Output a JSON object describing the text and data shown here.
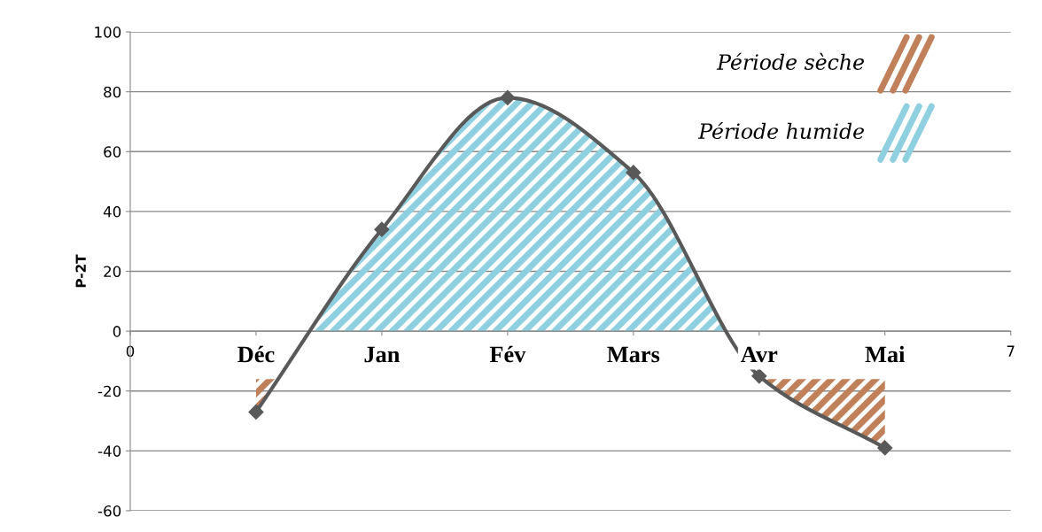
{
  "chart_data": {
    "type": "line",
    "ylabel": "P-2T",
    "x": [
      1,
      2,
      3,
      4,
      5,
      6
    ],
    "series": [
      {
        "color": "#595959",
        "values": [
          -27,
          34,
          78,
          53,
          -15,
          -39
        ]
      }
    ],
    "xlim": [
      0,
      7
    ],
    "xticks": [
      0,
      {
        "value": 1,
        "label": null
      },
      {
        "value": 2,
        "label": null
      },
      {
        "value": 3,
        "label": null
      },
      {
        "value": 4,
        "label": null
      },
      {
        "value": 5,
        "label": null
      },
      {
        "value": 6,
        "label": null
      },
      7
    ],
    "ylim": [
      -60,
      100
    ],
    "yticks": [
      -60,
      -40,
      -20,
      0,
      20,
      40,
      60,
      80,
      100
    ],
    "grid": "y",
    "marker": "diamond",
    "line_style": "solid",
    "annotations": [
      "Déc",
      "Jan",
      "Fév",
      "Mars",
      "Avr",
      "Mai",
      "Période sèche",
      "Période humide"
    ]
  }
}
